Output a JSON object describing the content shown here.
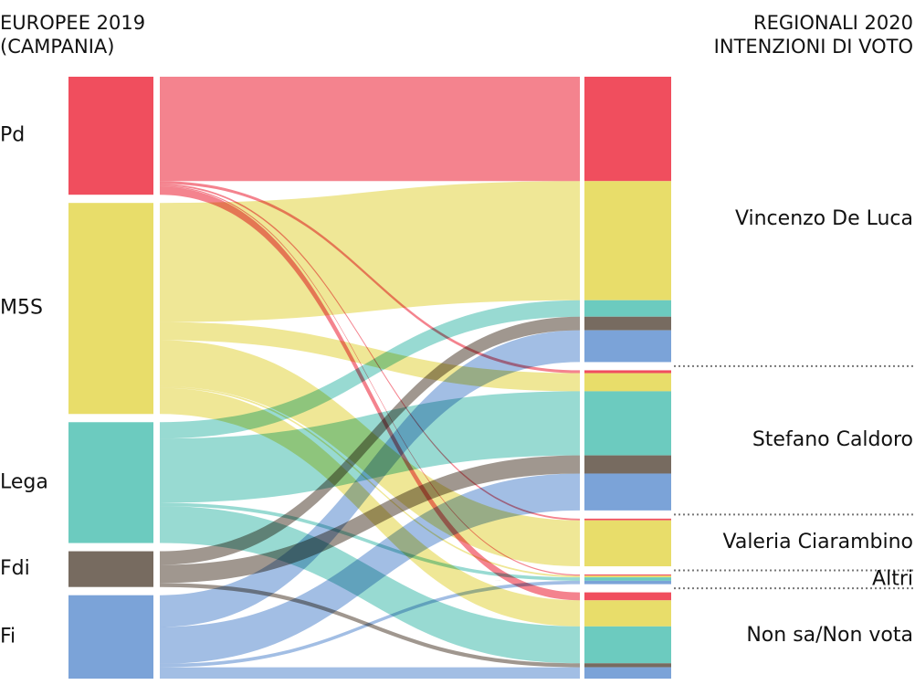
{
  "chart_data": {
    "type": "sankey",
    "left_title": [
      "EUROPEE 2019",
      "(CAMPANIA)"
    ],
    "right_title": [
      "REGIONALI 2020",
      "INTENZIONI DI VOTO"
    ],
    "targets": [
      "Vincenzo De Luca",
      "Stefano Caldoro",
      "Valeria Ciarambino",
      "Altri",
      "Non sa/Non vota"
    ],
    "series": [
      {
        "name": "Pd",
        "color": "#f04e5e",
        "values": [
          18.4,
          0.5,
          0.3,
          0.2,
          1.4
        ]
      },
      {
        "name": "M5S",
        "color": "#e8dd6a",
        "values": [
          21,
          3.2,
          8.1,
          0.3,
          4.6
        ]
      },
      {
        "name": "Lega",
        "color": "#6ccbbf",
        "values": [
          2.9,
          11.3,
          0,
          0.6,
          6.5
        ]
      },
      {
        "name": "Fdi",
        "color": "#776b60",
        "values": [
          2.4,
          3.2,
          0,
          0,
          0.7
        ]
      },
      {
        "name": "Fi",
        "color": "#7ba3d8",
        "values": [
          5.6,
          6.5,
          0,
          0.6,
          2
        ]
      }
    ]
  }
}
